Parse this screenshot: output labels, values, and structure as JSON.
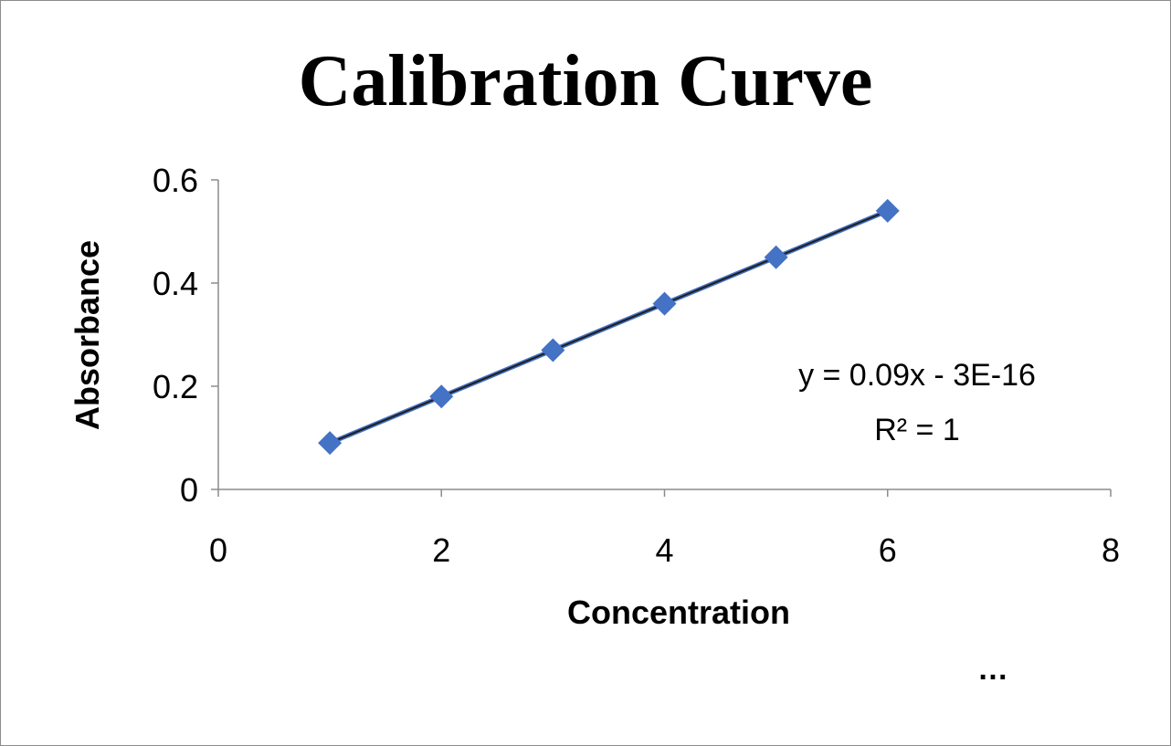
{
  "chart_data": {
    "type": "scatter",
    "title": "Calibration Curve",
    "xlabel": "Concentration",
    "ylabel": "Absorbance",
    "xlim": [
      0,
      8
    ],
    "ylim": [
      0,
      0.6
    ],
    "xticks": [
      "0",
      "2",
      "4",
      "6",
      "8"
    ],
    "yticks": [
      "0",
      "0.2",
      "0.4",
      "0.6"
    ],
    "grid": false,
    "series": [
      {
        "x": [
          1,
          2,
          3,
          4,
          5,
          6
        ],
        "y": [
          0.09,
          0.18,
          0.27,
          0.36,
          0.45,
          0.54
        ],
        "marker": "diamond",
        "color": "#4472c4"
      }
    ],
    "trendline": {
      "type": "linear",
      "equation": "y = 0.09x - 3E-16",
      "r_squared": "R² = 1",
      "color": "#1f1f1f"
    },
    "annotations": [
      "y = 0.09x - 3E-16",
      "R² = 1"
    ]
  },
  "footer": {
    "ellipsis": "…"
  }
}
